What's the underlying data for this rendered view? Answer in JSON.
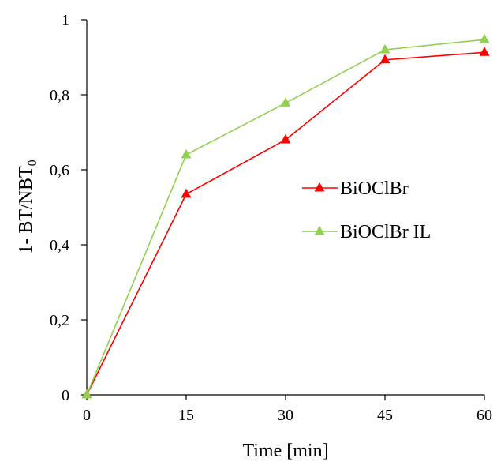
{
  "chart_data": {
    "type": "line",
    "title": "",
    "xlabel": "Time [min]",
    "ylabel": {
      "main": "1- BT/NBT",
      "subscript": "0"
    },
    "x": [
      0,
      15,
      30,
      45,
      60
    ],
    "xlim": [
      0,
      60
    ],
    "ylim": [
      0,
      1
    ],
    "xticks": [
      "0",
      "15",
      "30",
      "45",
      "60"
    ],
    "yticks": [
      "0",
      "0,2",
      "0,4",
      "0,6",
      "0,8",
      "1"
    ],
    "ytick_values": [
      0,
      0.2,
      0.4,
      0.6,
      0.8,
      1
    ],
    "grid": false,
    "legend_position": "center-right",
    "series": [
      {
        "name": "BiOClBr",
        "color": "#ff0000",
        "marker": "triangle",
        "values": [
          0,
          0.535,
          0.68,
          0.893,
          0.913
        ]
      },
      {
        "name": "BiOClBr IL",
        "color": "#92d050",
        "marker": "triangle",
        "values": [
          0,
          0.64,
          0.778,
          0.92,
          0.947
        ]
      }
    ]
  }
}
